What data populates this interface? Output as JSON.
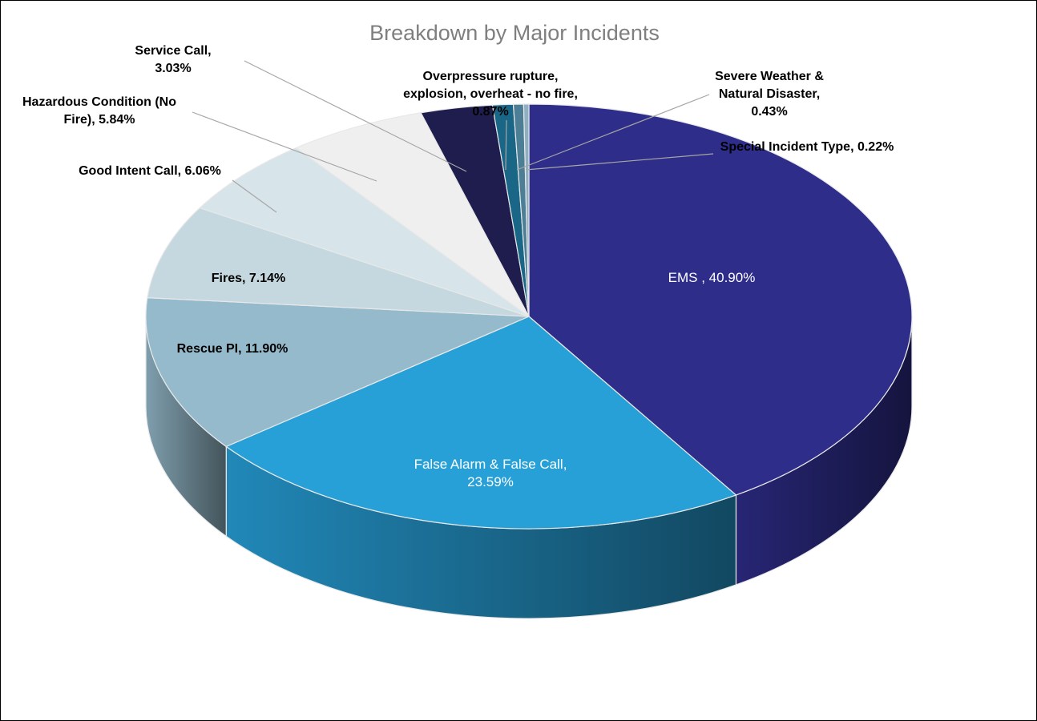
{
  "chart_data": {
    "type": "pie3d",
    "title": "Breakdown by Major Incidents",
    "values": [
      40.9,
      23.59,
      11.9,
      7.14,
      6.06,
      5.84,
      3.03,
      0.87,
      0.43,
      0.22
    ],
    "value_labels": [
      "EMS , 40.90%",
      "False Alarm & False Call, 23.59%",
      "Rescue PI, 11.90%",
      "Fires, 7.14%",
      "Good Intent Call, 6.06%",
      "Hazardous Condition (No Fire), 5.84%",
      "Service Call, 3.03%",
      "Overpressure rupture, explosion, overheat - no fire, 0.87%",
      "Severe Weather & Natural Disaster, 0.43%",
      "Special Incident Type, 0.22%"
    ],
    "colors": [
      "#2e2d8a",
      "#27a0d8",
      "#95bacb",
      "#c5d8e0",
      "#d7e4e9",
      "#efefef",
      "#1e1d4e",
      "#1a6687",
      "#4c7f96",
      "#8fb0c0"
    ]
  }
}
